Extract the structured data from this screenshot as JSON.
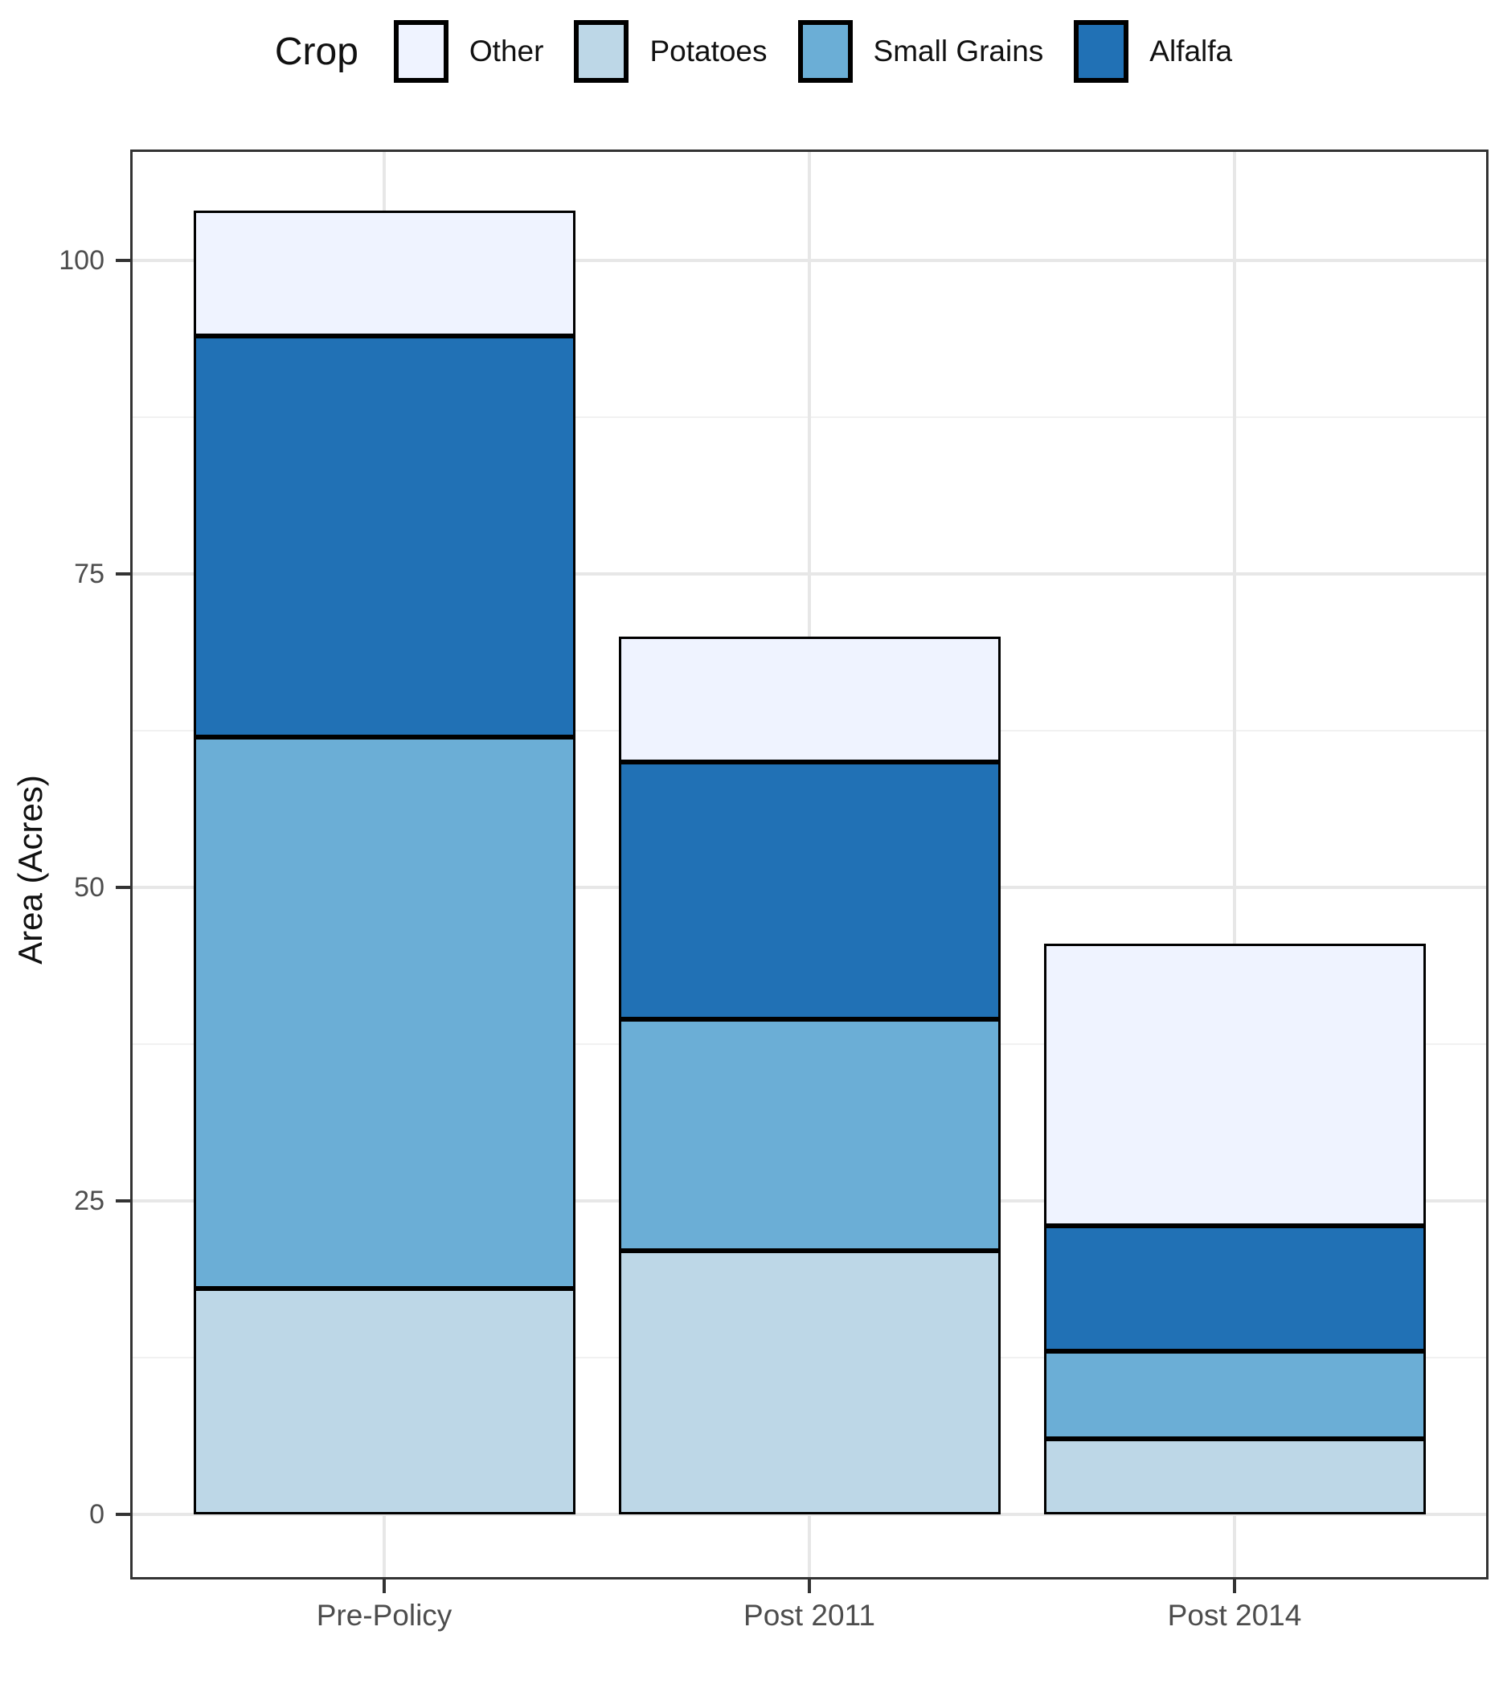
{
  "chart_data": {
    "type": "bar",
    "stacked": true,
    "title": "",
    "legend_title": "Crop",
    "legend": {
      "position": "top",
      "items": [
        {
          "label": "Other",
          "color": "#EFF3FF"
        },
        {
          "label": "Potatoes",
          "color": "#BDD7E7"
        },
        {
          "label": "Small Grains",
          "color": "#6BAED6"
        },
        {
          "label": "Alfalfa",
          "color": "#2171B5"
        }
      ]
    },
    "categories": [
      "Pre-Policy",
      "Post 2011",
      "Post 2014"
    ],
    "series": [
      {
        "name": "Potatoes",
        "color": "#BDD7E7",
        "values": [
          18,
          21,
          6
        ]
      },
      {
        "name": "Small Grains",
        "color": "#6BAED6",
        "values": [
          44,
          18.5,
          7
        ]
      },
      {
        "name": "Alfalfa",
        "color": "#2171B5",
        "values": [
          32,
          20.5,
          10
        ]
      },
      {
        "name": "Other",
        "color": "#EFF3FF",
        "values": [
          10,
          10,
          22.5
        ]
      }
    ],
    "stack_totals": [
      104,
      70,
      45.5
    ],
    "xlabel": "",
    "ylabel": "Area (Acres)",
    "yticks": [
      0,
      25,
      50,
      75,
      100
    ],
    "minor_gridlines": [
      12.5,
      37.5,
      62.5,
      87.5
    ],
    "ylim": [
      0,
      108
    ],
    "grid": "on",
    "style_colors": {
      "segment_border": "#000000",
      "panel_border": "#333333",
      "major_grid": "#e7e7e7",
      "minor_grid": "#f1f1f1",
      "axis_text": "#4d4d4d",
      "title_text": "#111111"
    }
  }
}
